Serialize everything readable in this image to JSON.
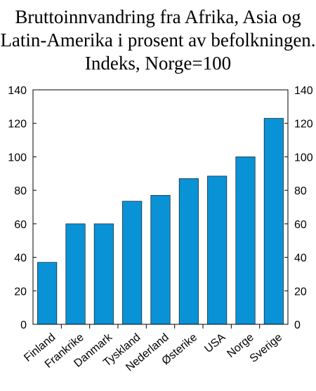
{
  "chart_data": {
    "type": "bar",
    "title_lines": [
      "Bruttoinnvandring fra Afrika, Asia og",
      "Latin-Amerika i prosent av befolkningen.",
      "Indeks, Norge=100"
    ],
    "categories": [
      "Finland",
      "Frankrike",
      "Danmark",
      "Tyskland",
      "Nederland",
      "Østerike",
      "USA",
      "Norge",
      "Sverige"
    ],
    "values": [
      37,
      60,
      60,
      73.5,
      77,
      87,
      88.5,
      100,
      123
    ],
    "ylim": [
      0,
      140
    ],
    "yticks": [
      0,
      20,
      40,
      60,
      80,
      100,
      120,
      140
    ],
    "ytick_labels": [
      "0",
      "20",
      "40",
      "60",
      "80",
      "100",
      "120",
      "140"
    ],
    "y_axis_both_sides": true,
    "grid": false,
    "legend": "none",
    "bar_color": "#0a92d6"
  }
}
